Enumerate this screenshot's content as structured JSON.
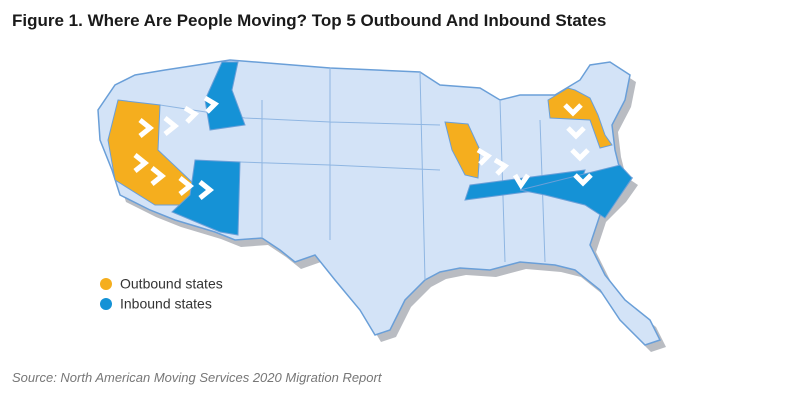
{
  "title": "Figure 1. Where Are People Moving? Top 5 Outbound And Inbound States",
  "legend": [
    {
      "label": "Outbound states",
      "color": "#f5ae1e"
    },
    {
      "label": "Inbound states",
      "color": "#1592d6"
    }
  ],
  "source": "Source: North American Moving Services 2020 Migration Report"
}
